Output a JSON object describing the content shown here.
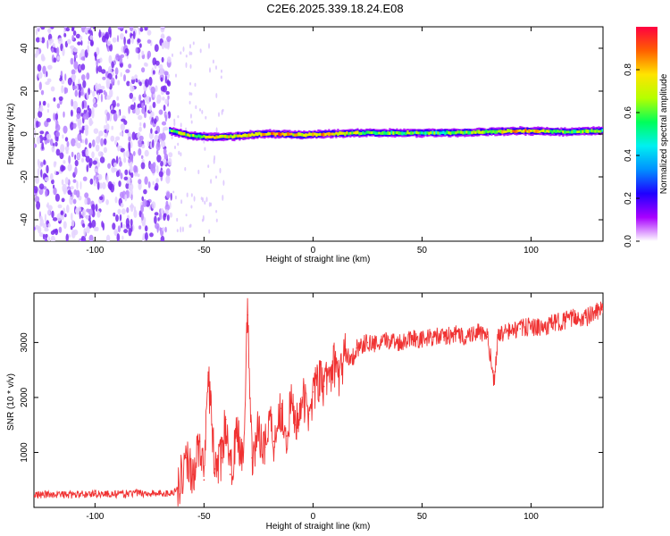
{
  "figure_title": "C2E6.2025.339.18.24.E08",
  "chart_data": [
    {
      "type": "heatmap",
      "title": "",
      "xlabel": "Height of straight line (km)",
      "ylabel": "Frequency (Hz)",
      "xlim": [
        -128,
        133
      ],
      "ylim": [
        -50,
        50
      ],
      "x_ticks": [
        "-100",
        "-50",
        "0",
        "50",
        "100"
      ],
      "y_ticks": [
        "-40",
        "-20",
        "0",
        "20",
        "40"
      ],
      "grid": false,
      "colorbar": {
        "label": "Normalized spectral amplitude",
        "range": [
          0,
          1
        ],
        "ticks": [
          "0.0",
          "0.2",
          "0.4",
          "0.6",
          "0.8"
        ],
        "colors": [
          "#ffffff",
          "#a800ff",
          "#1f00ff",
          "#0090ff",
          "#00f0f0",
          "#00ff5a",
          "#b4ff00",
          "#ffe400",
          "#ff6000",
          "#ff0040"
        ]
      },
      "noise_region": {
        "x_range": [
          -128,
          -65
        ],
        "amplitude": 0.2
      },
      "carrier_band": [
        {
          "x": -66,
          "frequency": 1.5,
          "amplitude": 0.55
        },
        {
          "x": -60,
          "frequency": 0.0,
          "amplitude": 0.7
        },
        {
          "x": -55,
          "frequency": -1.0,
          "amplitude": 0.65
        },
        {
          "x": -45,
          "frequency": -1.5,
          "amplitude": 0.7
        },
        {
          "x": -35,
          "frequency": -1.0,
          "amplitude": 0.75
        },
        {
          "x": -25,
          "frequency": 0.0,
          "amplitude": 0.8
        },
        {
          "x": -15,
          "frequency": 0.0,
          "amplitude": 0.85
        },
        {
          "x": -5,
          "frequency": -0.5,
          "amplitude": 0.7
        },
        {
          "x": 5,
          "frequency": 0.0,
          "amplitude": 0.8
        },
        {
          "x": 20,
          "frequency": 0.5,
          "amplitude": 0.65
        },
        {
          "x": 40,
          "frequency": 0.5,
          "amplitude": 0.6
        },
        {
          "x": 60,
          "frequency": 0.5,
          "amplitude": 0.55
        },
        {
          "x": 80,
          "frequency": 1.0,
          "amplitude": 0.65
        },
        {
          "x": 95,
          "frequency": 1.5,
          "amplitude": 0.8
        },
        {
          "x": 115,
          "frequency": 1.0,
          "amplitude": 0.6
        },
        {
          "x": 133,
          "frequency": 1.5,
          "amplitude": 0.6
        }
      ]
    },
    {
      "type": "line",
      "title": "",
      "xlabel": "Height of straight line (km)",
      "ylabel": "SNR (10 * v/v)",
      "xlim": [
        -128,
        133
      ],
      "ylim": [
        0,
        3900
      ],
      "x_ticks": [
        "-100",
        "-50",
        "0",
        "50",
        "100"
      ],
      "y_ticks": [
        "1000",
        "2000",
        "3000"
      ],
      "grid": false,
      "line_color": "#f03232",
      "series": [
        {
          "name": "",
          "x": [
            -128,
            -120,
            -110,
            -100,
            -90,
            -80,
            -70,
            -65,
            -62,
            -58,
            -55,
            -52,
            -50,
            -48,
            -45,
            -42,
            -40,
            -38,
            -35,
            -32,
            -30,
            -28,
            -25,
            -22,
            -20,
            -18,
            -15,
            -12,
            -10,
            -8,
            -5,
            -2,
            0,
            3,
            5,
            8,
            10,
            12,
            15,
            18,
            20,
            25,
            30,
            35,
            40,
            45,
            50,
            55,
            60,
            65,
            70,
            75,
            80,
            83,
            85,
            90,
            95,
            100,
            105,
            110,
            115,
            120,
            125,
            130,
            133
          ],
          "y": [
            220,
            240,
            230,
            250,
            240,
            260,
            250,
            260,
            350,
            900,
            600,
            1200,
            500,
            2400,
            700,
            900,
            1600,
            600,
            1300,
            1000,
            3500,
            900,
            1400,
            1100,
            1700,
            1200,
            1800,
            1300,
            1900,
            1500,
            2000,
            1700,
            2100,
            2300,
            2200,
            2500,
            2600,
            2400,
            2800,
            2700,
            2900,
            3000,
            2950,
            3050,
            3000,
            3100,
            3050,
            3100,
            3100,
            3150,
            3100,
            3200,
            3100,
            2300,
            3150,
            3200,
            3250,
            3300,
            3250,
            3350,
            3400,
            3450,
            3450,
            3550,
            3600
          ]
        }
      ]
    }
  ]
}
